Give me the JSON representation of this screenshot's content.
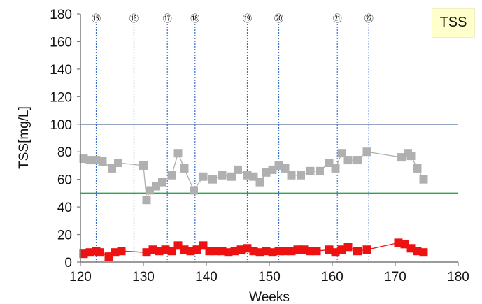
{
  "chart_data": {
    "type": "scatter",
    "title": "TSS",
    "xlabel": "Weeks",
    "ylabel": "TSS[mg/L]",
    "xlim": [
      120,
      180
    ],
    "ylim": [
      0,
      180
    ],
    "x_ticks": [
      120,
      130,
      140,
      150,
      160,
      170,
      180
    ],
    "y_ticks": [
      0,
      20,
      40,
      60,
      80,
      100,
      120,
      140,
      160,
      180
    ],
    "grid": false,
    "legend": "none",
    "reference_lines": [
      {
        "y": 100,
        "color": "#2f4f8f"
      },
      {
        "y": 50,
        "color": "#22aa44"
      }
    ],
    "events": [
      {
        "label": "⑮",
        "x": 122.5
      },
      {
        "label": "⑯",
        "x": 128.5
      },
      {
        "label": "⑰",
        "x": 133.8
      },
      {
        "label": "⑱",
        "x": 138.2
      },
      {
        "label": "⑲",
        "x": 146.5
      },
      {
        "label": "⑳",
        "x": 151.5
      },
      {
        "label": "㉑",
        "x": 160.8
      },
      {
        "label": "㉒",
        "x": 165.8
      }
    ],
    "series": [
      {
        "color": "#b0b0b0",
        "points": [
          [
            120.5,
            75
          ],
          [
            121.5,
            74
          ],
          [
            122.5,
            74
          ],
          [
            123.5,
            73
          ],
          [
            125,
            68
          ],
          [
            126,
            72
          ],
          [
            130,
            70
          ],
          [
            130.5,
            45
          ],
          [
            131,
            52
          ],
          [
            132,
            55
          ],
          [
            133,
            58
          ],
          [
            134.5,
            63
          ],
          [
            135.5,
            79
          ],
          [
            136.5,
            68
          ],
          [
            138,
            52
          ],
          [
            139.5,
            62
          ],
          [
            141,
            60
          ],
          [
            142.5,
            63
          ],
          [
            144,
            62
          ],
          [
            145,
            67
          ],
          [
            146.5,
            63
          ],
          [
            147.5,
            62
          ],
          [
            148.5,
            58
          ],
          [
            149.5,
            65
          ],
          [
            150.5,
            67
          ],
          [
            151.5,
            70
          ],
          [
            152.5,
            68
          ],
          [
            153.5,
            63
          ],
          [
            155,
            63
          ],
          [
            156.5,
            66
          ],
          [
            158,
            66
          ],
          [
            159.5,
            72
          ],
          [
            160.5,
            68
          ],
          [
            161.5,
            79
          ],
          [
            162.5,
            74
          ],
          [
            164,
            74
          ],
          [
            165.5,
            80
          ],
          [
            171,
            76
          ],
          [
            172,
            79
          ],
          [
            172.5,
            77
          ],
          [
            173.5,
            68
          ],
          [
            174.5,
            60
          ]
        ]
      },
      {
        "color": "#ee1111",
        "points": [
          [
            120.5,
            6
          ],
          [
            121.5,
            7
          ],
          [
            122.5,
            8
          ],
          [
            123,
            7
          ],
          [
            124.5,
            4
          ],
          [
            125.5,
            7
          ],
          [
            126.5,
            8
          ],
          [
            130.5,
            7
          ],
          [
            131.5,
            9
          ],
          [
            132.5,
            8
          ],
          [
            133.5,
            9
          ],
          [
            134.5,
            8
          ],
          [
            135.5,
            12
          ],
          [
            136.5,
            9
          ],
          [
            137.5,
            8
          ],
          [
            138.5,
            9
          ],
          [
            139.5,
            12
          ],
          [
            140.5,
            8
          ],
          [
            141.5,
            8
          ],
          [
            142.5,
            8
          ],
          [
            143.5,
            7
          ],
          [
            144.5,
            8
          ],
          [
            145.5,
            9
          ],
          [
            146.5,
            10
          ],
          [
            147.5,
            8
          ],
          [
            148.5,
            7
          ],
          [
            149.5,
            8
          ],
          [
            150.5,
            7
          ],
          [
            151.5,
            8
          ],
          [
            152.5,
            8
          ],
          [
            153.5,
            8
          ],
          [
            154.5,
            9
          ],
          [
            155.5,
            9
          ],
          [
            156.5,
            8
          ],
          [
            157.5,
            8
          ],
          [
            159.5,
            9
          ],
          [
            160.5,
            7
          ],
          [
            161.5,
            9
          ],
          [
            162.5,
            11
          ],
          [
            164,
            8
          ],
          [
            165.5,
            9
          ],
          [
            170.5,
            14
          ],
          [
            171.5,
            13
          ],
          [
            172.5,
            10
          ],
          [
            173.5,
            8
          ],
          [
            174.5,
            7
          ]
        ]
      }
    ]
  }
}
